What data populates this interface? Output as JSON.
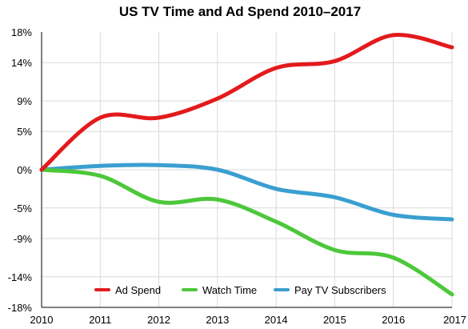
{
  "chart_data": {
    "type": "line",
    "title": "US TV Time and Ad Spend 2010–2017",
    "xlabel": "",
    "ylabel": "",
    "x": [
      "2010",
      "2011",
      "2012",
      "2013",
      "2014",
      "2015",
      "2016",
      "2017"
    ],
    "yticks": [
      18,
      14,
      9,
      5,
      0,
      -5,
      -9,
      -14,
      -18
    ],
    "ytick_labels": [
      "18%",
      "14%",
      "9%",
      "5%",
      "0%",
      "-5%",
      "-9%",
      "-14%",
      "-18%"
    ],
    "ylim": [
      -18,
      18
    ],
    "grid": true,
    "legend_position": "bottom",
    "series": [
      {
        "name": "Ad Spend",
        "color": "#e31a1c",
        "values": [
          0,
          6.8,
          6.8,
          9.3,
          13.3,
          14.2,
          17.6,
          16.0
        ]
      },
      {
        "name": "Watch Time",
        "color": "#4cc83a",
        "values": [
          0,
          -0.8,
          -4.2,
          -3.9,
          -6.8,
          -10.5,
          -11.5,
          -16.3
        ]
      },
      {
        "name": "Pay TV Subscribers",
        "color": "#3a9fd0",
        "values": [
          0,
          0.5,
          0.6,
          0.0,
          -2.5,
          -3.6,
          -5.9,
          -6.5
        ]
      }
    ]
  }
}
